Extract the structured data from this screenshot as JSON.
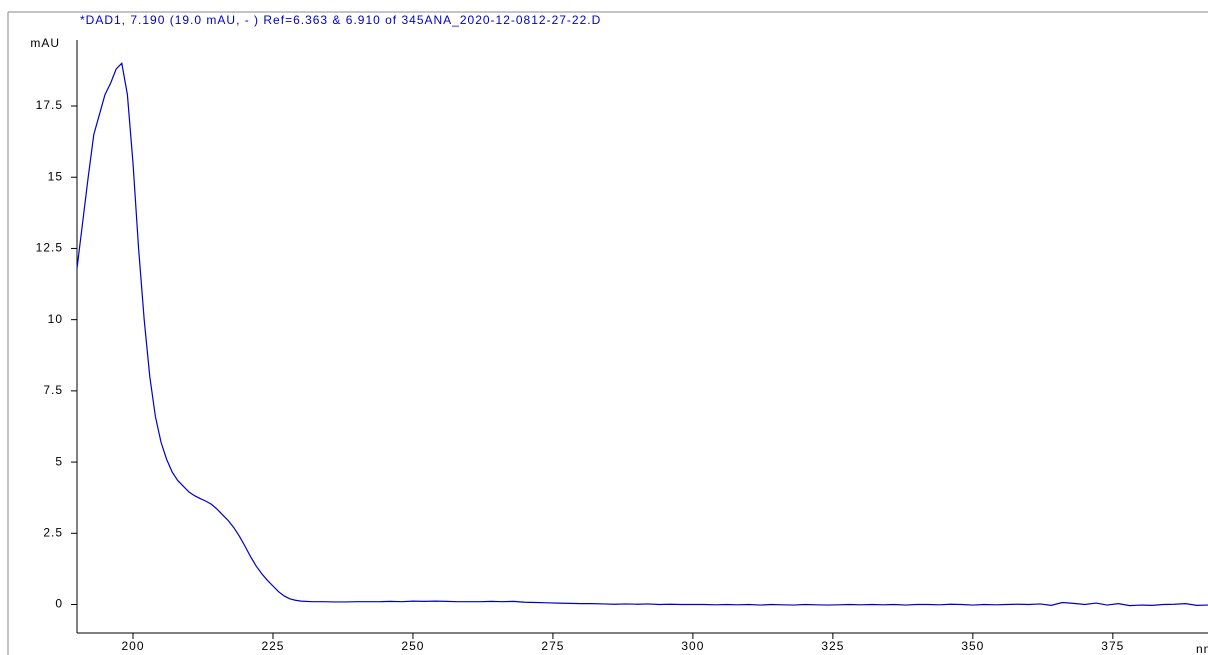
{
  "chart_data": {
    "type": "line",
    "title": "*DAD1, 7.190 (19.0 mAU, - ) Ref=6.363 & 6.910 of 345ANA_2020-12-0812-27-22.D",
    "y_label": "mAU",
    "x_label": "nm",
    "x": [
      190,
      191,
      192,
      193,
      194,
      195,
      196,
      197,
      198,
      199,
      200,
      201,
      202,
      203,
      204,
      205,
      206,
      207,
      208,
      209,
      210,
      211,
      212,
      213,
      214,
      215,
      216,
      217,
      218,
      219,
      220,
      221,
      222,
      223,
      224,
      225,
      226,
      227,
      228,
      229,
      230,
      232,
      234,
      236,
      238,
      240,
      242,
      244,
      246,
      248,
      250,
      252,
      254,
      256,
      258,
      260,
      262,
      264,
      266,
      268,
      270,
      272,
      274,
      276,
      278,
      280,
      282,
      284,
      286,
      288,
      290,
      292,
      294,
      296,
      298,
      300,
      302,
      304,
      306,
      308,
      310,
      312,
      314,
      316,
      318,
      320,
      322,
      324,
      326,
      328,
      330,
      332,
      334,
      336,
      338,
      340,
      342,
      344,
      346,
      348,
      350,
      352,
      354,
      356,
      358,
      360,
      362,
      364,
      366,
      368,
      370,
      372,
      374,
      376,
      378,
      380,
      382,
      384,
      386,
      388,
      390,
      392
    ],
    "series": [
      {
        "name": "DAD1",
        "color": "#0000cc",
        "values": [
          11.8,
          13.4,
          15.0,
          16.5,
          17.2,
          17.9,
          18.3,
          18.8,
          19.0,
          17.9,
          15.5,
          12.5,
          10.0,
          8.0,
          6.6,
          5.7,
          5.1,
          4.65,
          4.35,
          4.15,
          3.95,
          3.82,
          3.72,
          3.63,
          3.52,
          3.35,
          3.15,
          2.95,
          2.7,
          2.4,
          2.05,
          1.68,
          1.35,
          1.08,
          0.85,
          0.65,
          0.45,
          0.3,
          0.2,
          0.15,
          0.12,
          0.1,
          0.1,
          0.09,
          0.09,
          0.1,
          0.1,
          0.1,
          0.11,
          0.1,
          0.12,
          0.11,
          0.12,
          0.11,
          0.1,
          0.1,
          0.1,
          0.11,
          0.1,
          0.11,
          0.08,
          0.07,
          0.06,
          0.05,
          0.04,
          0.03,
          0.03,
          0.02,
          0.01,
          0.02,
          0.01,
          0.02,
          0,
          0.01,
          0,
          0,
          0,
          -0.01,
          0,
          -0.01,
          0,
          -0.02,
          0,
          -0.01,
          -0.02,
          0,
          -0.01,
          -0.02,
          -0.01,
          0,
          -0.01,
          0,
          -0.01,
          0,
          -0.02,
          0,
          0,
          -0.01,
          0.01,
          0,
          -0.02,
          0,
          -0.01,
          0,
          0.01,
          0,
          0.02,
          -0.03,
          0.07,
          0.04,
          0,
          0.05,
          -0.02,
          0.03,
          -0.04,
          -0.02,
          -0.03,
          0,
          0.01,
          0.03,
          -0.03,
          -0.02
        ]
      }
    ],
    "xlim": [
      190,
      392
    ],
    "ylim": [
      -1,
      20.8
    ],
    "xticks": [
      200,
      225,
      250,
      275,
      300,
      325,
      350,
      375
    ],
    "yticks": [
      0,
      2.5,
      5,
      7.5,
      10,
      12.5,
      15,
      17.5
    ]
  }
}
